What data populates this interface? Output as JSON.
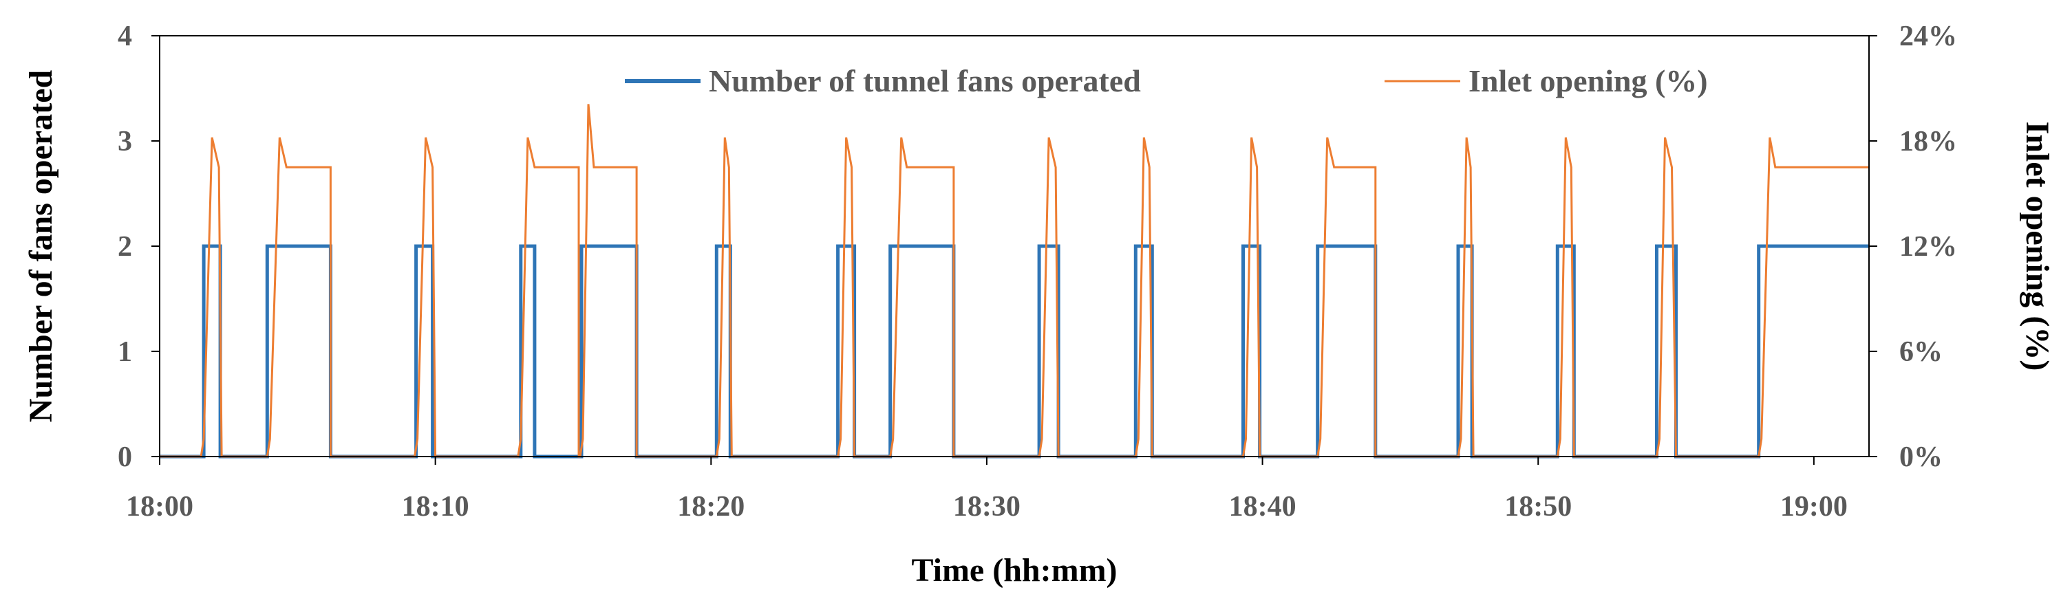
{
  "chart_data": {
    "type": "line",
    "title": "",
    "xlabel": "Time (hh:mm)",
    "ylabel_left": "Number of fans operated",
    "ylabel_right": "Inlet opening (%)",
    "x_unit": "minutes after 18:00",
    "xlim": [
      0,
      62
    ],
    "ylim_left": [
      0,
      4
    ],
    "ylim_right": [
      0,
      24
    ],
    "x_ticks": [
      {
        "value": 0,
        "label": "18:00"
      },
      {
        "value": 10,
        "label": "18:10"
      },
      {
        "value": 20,
        "label": "18:20"
      },
      {
        "value": 30,
        "label": "18:30"
      },
      {
        "value": 40,
        "label": "18:40"
      },
      {
        "value": 50,
        "label": "18:50"
      },
      {
        "value": 60,
        "label": "19:00"
      }
    ],
    "y_left_ticks": [
      "0",
      "1",
      "2",
      "3",
      "4"
    ],
    "y_right_ticks": [
      "0%",
      "6%",
      "12%",
      "18%",
      "24%"
    ],
    "legend_position": "top-right",
    "grid": false,
    "series": [
      {
        "name": "Number of tunnel fans operated",
        "axis": "left",
        "color": "#2E75B6",
        "points": [
          [
            0,
            0
          ],
          [
            1.6,
            0
          ],
          [
            1.6,
            2
          ],
          [
            2.2,
            2
          ],
          [
            2.2,
            0
          ],
          [
            3.9,
            0
          ],
          [
            3.9,
            2
          ],
          [
            6.2,
            2
          ],
          [
            6.2,
            0
          ],
          [
            9.3,
            0
          ],
          [
            9.3,
            2
          ],
          [
            9.9,
            2
          ],
          [
            9.9,
            0
          ],
          [
            13.1,
            0
          ],
          [
            13.1,
            2
          ],
          [
            13.6,
            2
          ],
          [
            13.6,
            0
          ],
          [
            15.2,
            0
          ],
          [
            15.2,
            0
          ],
          [
            15.2,
            0
          ],
          [
            15.2,
            0
          ],
          [
            15.3,
            0
          ],
          [
            15.3,
            2
          ],
          [
            17.3,
            2
          ],
          [
            17.3,
            0
          ],
          [
            20.2,
            0
          ],
          [
            20.2,
            2
          ],
          [
            20.7,
            2
          ],
          [
            20.7,
            0
          ],
          [
            24.6,
            0
          ],
          [
            24.6,
            2
          ],
          [
            25.2,
            2
          ],
          [
            25.2,
            0
          ],
          [
            26.5,
            0
          ],
          [
            26.5,
            2
          ],
          [
            28.8,
            2
          ],
          [
            28.8,
            0
          ],
          [
            31.9,
            0
          ],
          [
            31.9,
            2
          ],
          [
            32.6,
            2
          ],
          [
            32.6,
            0
          ],
          [
            35.4,
            0
          ],
          [
            35.4,
            2
          ],
          [
            36.0,
            2
          ],
          [
            36.0,
            0
          ],
          [
            39.3,
            0
          ],
          [
            39.3,
            2
          ],
          [
            39.9,
            2
          ],
          [
            39.9,
            0
          ],
          [
            42.0,
            0
          ],
          [
            42.0,
            2
          ],
          [
            44.1,
            2
          ],
          [
            44.1,
            0
          ],
          [
            47.1,
            0
          ],
          [
            47.1,
            2
          ],
          [
            47.6,
            2
          ],
          [
            47.6,
            0
          ],
          [
            50.7,
            0
          ],
          [
            50.7,
            2
          ],
          [
            51.3,
            2
          ],
          [
            51.3,
            0
          ],
          [
            54.3,
            0
          ],
          [
            54.3,
            2
          ],
          [
            55.0,
            2
          ],
          [
            55.0,
            0
          ],
          [
            58.0,
            0
          ],
          [
            58.0,
            2
          ],
          [
            62,
            2
          ]
        ]
      },
      {
        "name": "Inlet opening (%)",
        "axis": "right",
        "color": "#ED7D31",
        "points": [
          [
            0,
            0
          ],
          [
            1.5,
            0
          ],
          [
            1.6,
            1
          ],
          [
            1.9,
            18.2
          ],
          [
            2.15,
            16.5
          ],
          [
            2.25,
            0
          ],
          [
            3.9,
            0
          ],
          [
            4.0,
            1
          ],
          [
            4.35,
            18.2
          ],
          [
            4.6,
            16.5
          ],
          [
            6.2,
            16.5
          ],
          [
            6.2,
            0
          ],
          [
            9.25,
            0
          ],
          [
            9.35,
            1
          ],
          [
            9.65,
            18.2
          ],
          [
            9.9,
            16.5
          ],
          [
            10.0,
            0
          ],
          [
            13.0,
            0
          ],
          [
            13.1,
            1
          ],
          [
            13.35,
            18.2
          ],
          [
            13.6,
            16.5
          ],
          [
            15.2,
            16.5
          ],
          [
            15.2,
            0
          ],
          [
            15.25,
            0
          ],
          [
            15.35,
            1
          ],
          [
            15.55,
            20.1
          ],
          [
            15.75,
            16.5
          ],
          [
            17.3,
            16.5
          ],
          [
            17.3,
            0
          ],
          [
            20.2,
            0
          ],
          [
            20.3,
            1
          ],
          [
            20.5,
            18.2
          ],
          [
            20.65,
            16.5
          ],
          [
            20.75,
            0
          ],
          [
            24.6,
            0
          ],
          [
            24.7,
            1
          ],
          [
            24.9,
            18.2
          ],
          [
            25.1,
            16.5
          ],
          [
            25.2,
            0
          ],
          [
            26.5,
            0
          ],
          [
            26.6,
            1
          ],
          [
            26.9,
            18.2
          ],
          [
            27.1,
            16.5
          ],
          [
            28.8,
            16.5
          ],
          [
            28.8,
            0
          ],
          [
            31.9,
            0
          ],
          [
            32.0,
            1
          ],
          [
            32.25,
            18.2
          ],
          [
            32.5,
            16.5
          ],
          [
            32.6,
            0
          ],
          [
            35.4,
            0
          ],
          [
            35.5,
            1
          ],
          [
            35.7,
            18.2
          ],
          [
            35.9,
            16.5
          ],
          [
            36.0,
            0
          ],
          [
            39.3,
            0
          ],
          [
            39.4,
            1
          ],
          [
            39.6,
            18.2
          ],
          [
            39.8,
            16.5
          ],
          [
            39.9,
            0
          ],
          [
            42.0,
            0
          ],
          [
            42.1,
            1
          ],
          [
            42.35,
            18.2
          ],
          [
            42.6,
            16.5
          ],
          [
            44.1,
            16.5
          ],
          [
            44.1,
            0
          ],
          [
            47.1,
            0
          ],
          [
            47.2,
            1
          ],
          [
            47.4,
            18.2
          ],
          [
            47.55,
            16.5
          ],
          [
            47.65,
            0
          ],
          [
            50.7,
            0
          ],
          [
            50.8,
            1
          ],
          [
            51.0,
            18.2
          ],
          [
            51.2,
            16.5
          ],
          [
            51.3,
            0
          ],
          [
            54.3,
            0
          ],
          [
            54.4,
            1
          ],
          [
            54.6,
            18.2
          ],
          [
            54.85,
            16.5
          ],
          [
            55.0,
            0
          ],
          [
            58.0,
            0
          ],
          [
            58.1,
            1
          ],
          [
            58.4,
            18.2
          ],
          [
            58.6,
            16.5
          ],
          [
            62,
            16.5
          ]
        ]
      }
    ]
  }
}
